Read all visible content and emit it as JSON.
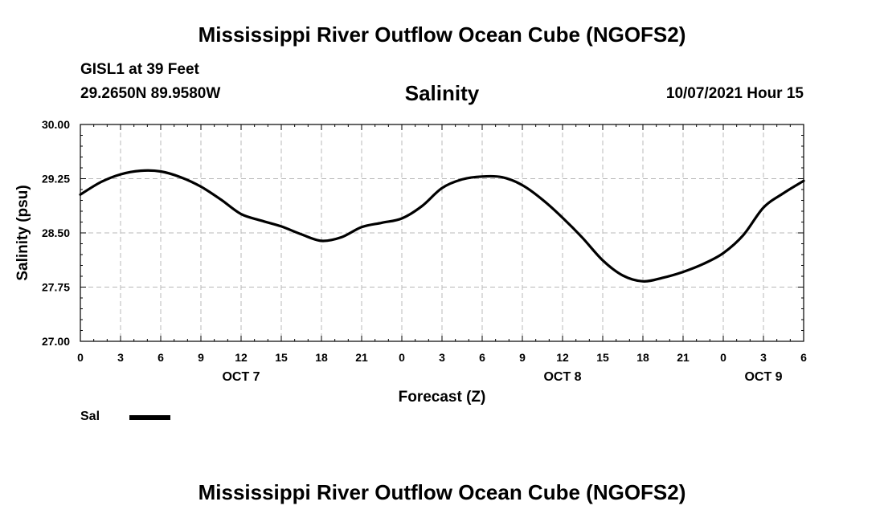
{
  "chart_data": {
    "type": "line",
    "title": "Mississippi River Outflow Ocean Cube (NGOFS2)",
    "footer_title": "Mississippi River Outflow Ocean Cube (NGOFS2)",
    "station": "GISL1 at 39 Feet",
    "location": "29.2650N  89.9580W",
    "variable": "Salinity",
    "datetime": "10/07/2021 Hour 15",
    "xlabel": "Forecast (Z)",
    "ylabel": "Salinity (psu)",
    "ylim": [
      27.0,
      30.0
    ],
    "xlim": [
      0,
      54
    ],
    "yticks": [
      27.0,
      27.75,
      28.5,
      29.25,
      30.0
    ],
    "ytick_labels": [
      "27.00",
      "27.75",
      "28.50",
      "29.25",
      "30.00"
    ],
    "xticks": [
      0,
      3,
      6,
      9,
      12,
      15,
      18,
      21,
      24,
      27,
      30,
      33,
      36,
      39,
      42,
      45,
      48,
      51,
      54
    ],
    "xtick_labels": [
      "0",
      "3",
      "6",
      "9",
      "12",
      "15",
      "18",
      "21",
      "0",
      "3",
      "6",
      "9",
      "12",
      "15",
      "18",
      "21",
      "0",
      "3",
      "6"
    ],
    "date_labels": [
      {
        "label": "OCT 7",
        "x": 12
      },
      {
        "label": "OCT 8",
        "x": 36
      },
      {
        "label": "OCT 9",
        "x": 51
      }
    ],
    "grid": true,
    "series": [
      {
        "name": "Sal",
        "color": "#000000",
        "x": [
          0,
          1.5,
          3,
          4.5,
          6,
          7.5,
          9,
          10.5,
          12,
          13.5,
          15,
          16.5,
          18,
          19.5,
          21,
          22.5,
          24,
          25.5,
          27,
          28.5,
          30,
          31.5,
          33,
          34.5,
          36,
          37.5,
          39,
          40.5,
          42,
          43.5,
          45,
          46.5,
          48,
          49.5,
          51,
          52.5,
          54
        ],
        "y": [
          29.03,
          29.2,
          29.31,
          29.36,
          29.35,
          29.27,
          29.14,
          28.96,
          28.76,
          28.67,
          28.59,
          28.48,
          28.39,
          28.44,
          28.58,
          28.64,
          28.7,
          28.87,
          29.12,
          29.24,
          29.28,
          29.27,
          29.16,
          28.96,
          28.71,
          28.43,
          28.12,
          27.91,
          27.83,
          27.88,
          27.96,
          28.07,
          28.22,
          28.47,
          28.85,
          29.05,
          29.22
        ]
      }
    ],
    "legend": {
      "label": "Sal",
      "placement": "bottom-left"
    }
  }
}
